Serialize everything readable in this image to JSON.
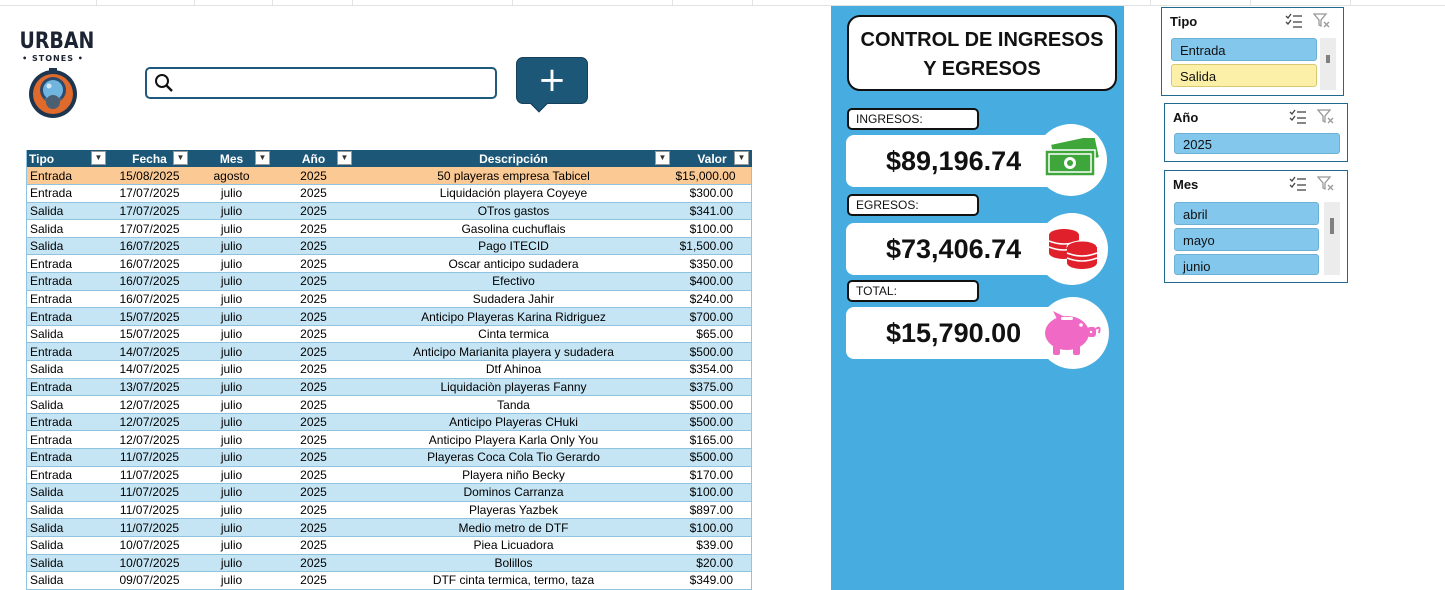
{
  "brand": {
    "name": "URBAN",
    "sub": "• STONES •"
  },
  "search": {
    "value": "",
    "placeholder": ""
  },
  "add_button": {
    "label": "+"
  },
  "table": {
    "headers": [
      "Tipo",
      "Fecha",
      "Mes",
      "Año",
      "Descripción",
      "Valor"
    ],
    "rows": [
      [
        "Entrada",
        "15/08/2025",
        "agosto",
        "2025",
        "50 playeras empresa Tabicel",
        "$15,000.00"
      ],
      [
        "Entrada",
        "17/07/2025",
        "julio",
        "2025",
        "Liquidación playera Coyeye",
        "$300.00"
      ],
      [
        "Salida",
        "17/07/2025",
        "julio",
        "2025",
        "OTros gastos",
        "$341.00"
      ],
      [
        "Salida",
        "17/07/2025",
        "julio",
        "2025",
        "Gasolina cuchuflais",
        "$100.00"
      ],
      [
        "Salida",
        "16/07/2025",
        "julio",
        "2025",
        "Pago ITECID",
        "$1,500.00"
      ],
      [
        "Entrada",
        "16/07/2025",
        "julio",
        "2025",
        "Oscar anticipo sudadera",
        "$350.00"
      ],
      [
        "Entrada",
        "16/07/2025",
        "julio",
        "2025",
        "Efectivo",
        "$400.00"
      ],
      [
        "Entrada",
        "16/07/2025",
        "julio",
        "2025",
        "Sudadera Jahir",
        "$240.00"
      ],
      [
        "Entrada",
        "15/07/2025",
        "julio",
        "2025",
        "Anticipo Playeras Karina Ridriguez",
        "$700.00"
      ],
      [
        "Salida",
        "15/07/2025",
        "julio",
        "2025",
        "Cinta termica",
        "$65.00"
      ],
      [
        "Entrada",
        "14/07/2025",
        "julio",
        "2025",
        "Anticipo Marianita playera y sudadera",
        "$500.00"
      ],
      [
        "Salida",
        "14/07/2025",
        "julio",
        "2025",
        "Dtf Ahinoa",
        "$354.00"
      ],
      [
        "Entrada",
        "13/07/2025",
        "julio",
        "2025",
        "Liquidaciòn playeras Fanny",
        "$375.00"
      ],
      [
        "Salida",
        "12/07/2025",
        "julio",
        "2025",
        "Tanda",
        "$500.00"
      ],
      [
        "Entrada",
        "12/07/2025",
        "julio",
        "2025",
        "Anticipo Playeras CHuki",
        "$500.00"
      ],
      [
        "Entrada",
        "12/07/2025",
        "julio",
        "2025",
        "Anticipo Playera Karla Only You",
        "$165.00"
      ],
      [
        "Entrada",
        "11/07/2025",
        "julio",
        "2025",
        "Playeras Coca Cola Tio Gerardo",
        "$500.00"
      ],
      [
        "Entrada",
        "11/07/2025",
        "julio",
        "2025",
        "Playera niño Becky",
        "$170.00"
      ],
      [
        "Salida",
        "11/07/2025",
        "julio",
        "2025",
        "Dominos Carranza",
        "$100.00"
      ],
      [
        "Salida",
        "11/07/2025",
        "julio",
        "2025",
        "Playeras Yazbek",
        "$897.00"
      ],
      [
        "Salida",
        "11/07/2025",
        "julio",
        "2025",
        "Medio metro de DTF",
        "$100.00"
      ],
      [
        "Salida",
        "10/07/2025",
        "julio",
        "2025",
        "Piea Licuadora",
        "$39.00"
      ],
      [
        "Salida",
        "10/07/2025",
        "julio",
        "2025",
        "Bolillos",
        "$20.00"
      ],
      [
        "Salida",
        "09/07/2025",
        "julio",
        "2025",
        "DTF cinta termica, termo, taza",
        "$349.00"
      ]
    ]
  },
  "dashboard": {
    "title_line1": "CONTROL DE INGRESOS",
    "title_line2": "Y EGRESOS",
    "ingresos_label": "INGRESOS:",
    "ingresos_value": "$89,196.74",
    "egresos_label": "EGRESOS:",
    "egresos_value": "$73,406.74",
    "total_label": "TOTAL:",
    "total_value": "$15,790.00",
    "icons": [
      "money-icon",
      "coins-icon",
      "piggy-bank-icon"
    ]
  },
  "slicers": {
    "tipo": {
      "title": "Tipo",
      "items": [
        "Entrada",
        "Salida"
      ]
    },
    "anio": {
      "title": "Año",
      "items": [
        "2025"
      ]
    },
    "mes": {
      "title": "Mes",
      "items": [
        "abril",
        "mayo",
        "junio"
      ]
    }
  },
  "colors": {
    "header": "#1d5777",
    "row_alt": "#c6e5f4",
    "selected_row": "#fac994",
    "dashboard_bg": "#47ade0",
    "slicer_item": "#83c8ec",
    "slicer_item_highlight": "#fcf0a8"
  }
}
